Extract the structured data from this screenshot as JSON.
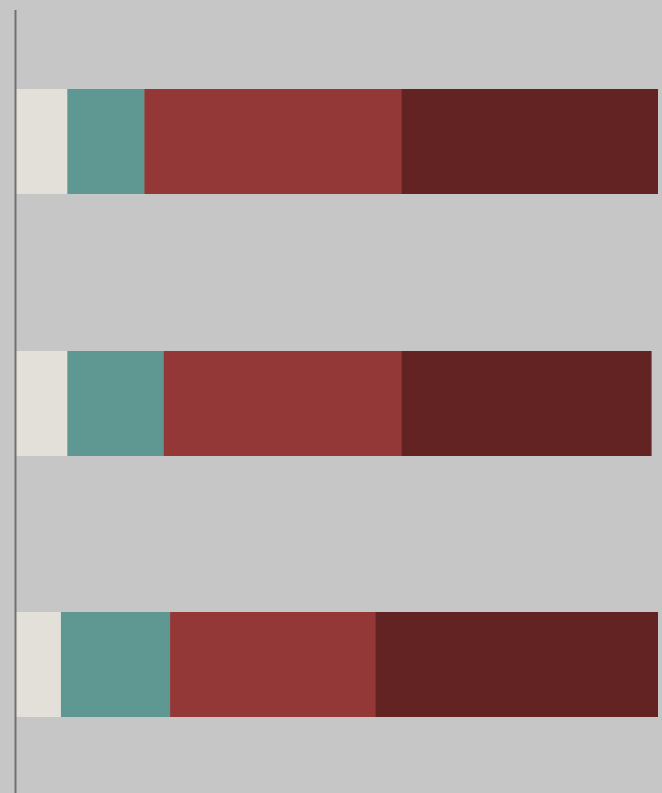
{
  "chart_data": {
    "type": "bar",
    "orientation": "horizontal",
    "stacked": true,
    "title": "",
    "xlabel": "",
    "ylabel": "",
    "grid": false,
    "legend": "none",
    "categories": [
      "",
      "",
      ""
    ],
    "series": [
      {
        "color": "#e3e0da",
        "values": [
          8,
          8,
          7
        ]
      },
      {
        "color": "#5f9793",
        "values": [
          12,
          15,
          17
        ]
      },
      {
        "color": "#933836",
        "values": [
          40,
          37,
          32
        ]
      },
      {
        "color": "#632322",
        "values": [
          40,
          39,
          44
        ]
      }
    ],
    "xlim": [
      0,
      100
    ]
  },
  "colors": {
    "background": "#c6c6c6",
    "axis": "#707070"
  }
}
